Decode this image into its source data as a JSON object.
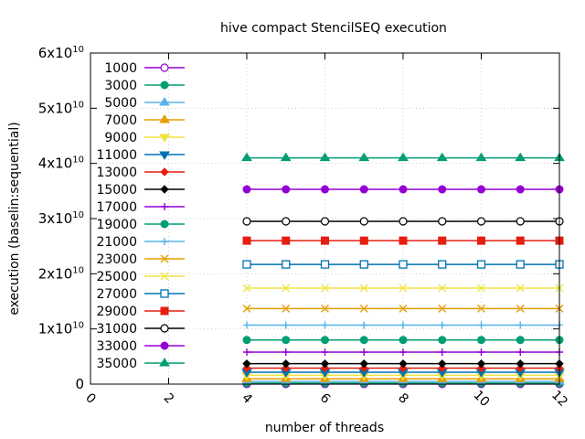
{
  "chart_data": {
    "type": "line",
    "title": "hive compact StencilSEQ execution",
    "xlabel": "number of threads",
    "ylabel": "execution (baselin:sequential)",
    "xlim": [
      0,
      12
    ],
    "ylim": [
      0,
      60000000000
    ],
    "x_ticks": [
      "0",
      "2",
      "4",
      "6",
      "8",
      "10",
      "12"
    ],
    "y_ticks": [
      {
        "value": 0,
        "mantissa": "0",
        "exponent": ""
      },
      {
        "value": 10000000000,
        "mantissa": "1x10",
        "exponent": "10"
      },
      {
        "value": 20000000000,
        "mantissa": "2x10",
        "exponent": "10"
      },
      {
        "value": 30000000000,
        "mantissa": "3x10",
        "exponent": "10"
      },
      {
        "value": 40000000000,
        "mantissa": "4x10",
        "exponent": "10"
      },
      {
        "value": 50000000000,
        "mantissa": "5x10",
        "exponent": "10"
      },
      {
        "value": 60000000000,
        "mantissa": "6x10",
        "exponent": "10"
      }
    ],
    "grid": true,
    "legend_position": "left",
    "x": [
      4,
      5,
      6,
      7,
      8,
      9,
      10,
      11,
      12
    ],
    "series": [
      {
        "name": "1000",
        "color": "#9400d3",
        "marker": "circle-open",
        "value": 20000000
      },
      {
        "name": "3000",
        "color": "#009e73",
        "marker": "circle-filled",
        "value": 180000000
      },
      {
        "name": "5000",
        "color": "#56b4e9",
        "marker": "triangle-up",
        "value": 500000000
      },
      {
        "name": "7000",
        "color": "#e69f00",
        "marker": "triangle-up",
        "value": 980000000
      },
      {
        "name": "9000",
        "color": "#f0e442",
        "marker": "triangle-down",
        "value": 1600000000
      },
      {
        "name": "11000",
        "color": "#0072b2",
        "marker": "triangle-down",
        "value": 2150000000
      },
      {
        "name": "13000",
        "color": "#e51e10",
        "marker": "diamond",
        "value": 2900000000
      },
      {
        "name": "15000",
        "color": "#000000",
        "marker": "diamond",
        "value": 3700000000
      },
      {
        "name": "17000",
        "color": "#9400d3",
        "marker": "plus",
        "value": 5800000000
      },
      {
        "name": "19000",
        "color": "#009e73",
        "marker": "circle-filled",
        "value": 8000000000
      },
      {
        "name": "21000",
        "color": "#56b4e9",
        "marker": "plus",
        "value": 10700000000
      },
      {
        "name": "23000",
        "color": "#e69f00",
        "marker": "cross",
        "value": 13700000000
      },
      {
        "name": "25000",
        "color": "#f0e442",
        "marker": "cross",
        "value": 17400000000
      },
      {
        "name": "27000",
        "color": "#0072b2",
        "marker": "square-open",
        "value": 21700000000
      },
      {
        "name": "29000",
        "color": "#e51e10",
        "marker": "square-filled",
        "value": 26000000000
      },
      {
        "name": "31000",
        "color": "#000000",
        "marker": "circle-open",
        "value": 29500000000
      },
      {
        "name": "33000",
        "color": "#9400d3",
        "marker": "circle-filled",
        "value": 35300000000
      },
      {
        "name": "35000",
        "color": "#009e73",
        "marker": "triangle-up",
        "value": 41000000000
      }
    ]
  }
}
